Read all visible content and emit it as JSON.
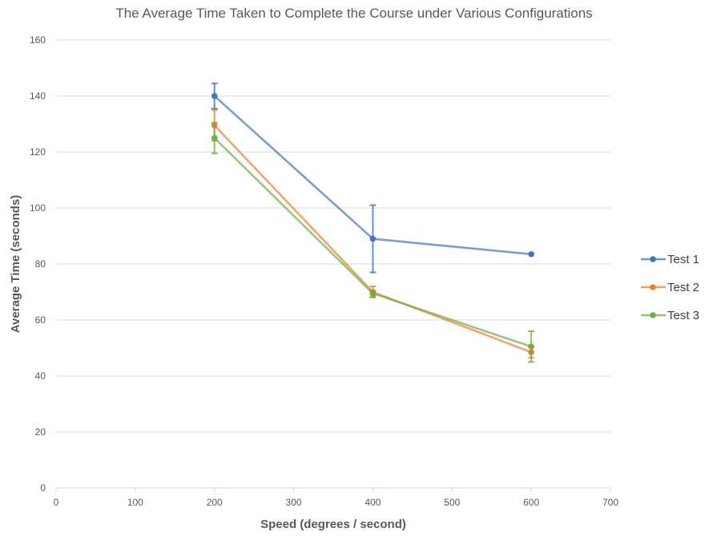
{
  "chart_data": {
    "type": "line",
    "title": "The Average Time Taken to Complete the Course under Various Configurations",
    "xlabel": "Speed (degrees / second)",
    "ylabel": "Average Time (seconds)",
    "xlim": [
      0,
      700
    ],
    "ylim": [
      0,
      160
    ],
    "x_ticks": [
      "0",
      "100",
      "200",
      "300",
      "400",
      "500",
      "600",
      "700"
    ],
    "y_ticks": [
      "0",
      "20",
      "40",
      "60",
      "80",
      "100",
      "120",
      "140",
      "160"
    ],
    "grid": "horizontal",
    "legend_position": "right",
    "series": [
      {
        "name": "Test 1",
        "color": "#4472c4",
        "x": [
          200,
          400,
          600
        ],
        "y": [
          140,
          89,
          83.5
        ],
        "error": [
          4.5,
          12,
          0
        ]
      },
      {
        "name": "Test 2",
        "color": "#ed7d31",
        "x": [
          200,
          400,
          600
        ],
        "y": [
          129.5,
          70,
          48.5
        ],
        "error": [
          5.5,
          2,
          2
        ]
      },
      {
        "name": "Test 3",
        "color": "#70ad47",
        "x": [
          200,
          400,
          600
        ],
        "y": [
          125,
          69.5,
          50.5
        ],
        "error": [
          5.5,
          1,
          5.5
        ]
      }
    ]
  }
}
